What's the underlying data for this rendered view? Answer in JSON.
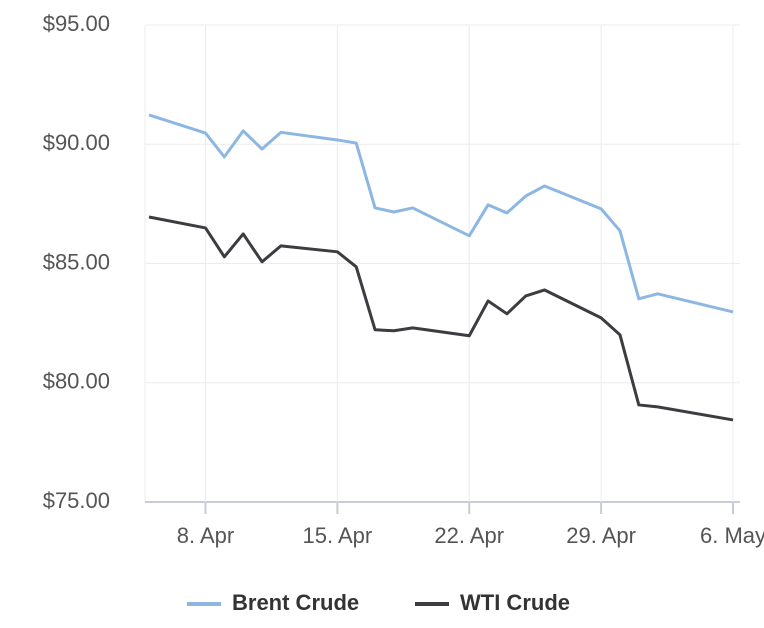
{
  "chart_data": {
    "type": "line",
    "x": [
      "04-05",
      "04-08",
      "04-09",
      "04-10",
      "04-11",
      "04-12",
      "04-15",
      "04-16",
      "04-17",
      "04-18",
      "04-19",
      "04-22",
      "04-23",
      "04-24",
      "04-25",
      "04-26",
      "04-29",
      "04-30",
      "05-01",
      "05-02",
      "05-06"
    ],
    "series": [
      {
        "name": "Brent Crude",
        "color": "#8db7e3",
        "values": [
          91.23,
          90.47,
          89.47,
          90.56,
          89.8,
          90.5,
          90.18,
          90.05,
          87.33,
          87.16,
          87.33,
          86.16,
          87.46,
          87.12,
          87.83,
          88.25,
          87.29,
          86.37,
          83.52,
          83.73,
          82.97
        ]
      },
      {
        "name": "WTI Crude",
        "color": "#3c3c41",
        "values": [
          86.95,
          86.49,
          85.28,
          86.24,
          85.07,
          85.74,
          85.49,
          84.86,
          82.22,
          82.18,
          82.3,
          81.97,
          83.43,
          82.89,
          83.64,
          83.89,
          82.72,
          82.01,
          79.07,
          78.99,
          78.44
        ]
      }
    ],
    "xlim": [
      "04-05",
      "05-06"
    ],
    "xticks": [
      {
        "value": "04-08",
        "label": "8. Apr"
      },
      {
        "value": "04-15",
        "label": "15. Apr"
      },
      {
        "value": "04-22",
        "label": "22. Apr"
      },
      {
        "value": "04-29",
        "label": "29. Apr"
      },
      {
        "value": "05-06",
        "label": "6. May"
      }
    ],
    "ylim": [
      75,
      95
    ],
    "yticks": [
      {
        "value": 75,
        "label": "$75.00"
      },
      {
        "value": 80,
        "label": "$80.00"
      },
      {
        "value": 85,
        "label": "$85.00"
      },
      {
        "value": 90,
        "label": "$90.00"
      },
      {
        "value": 95,
        "label": "$95.00"
      }
    ],
    "grid": true,
    "legend": "bottom"
  }
}
